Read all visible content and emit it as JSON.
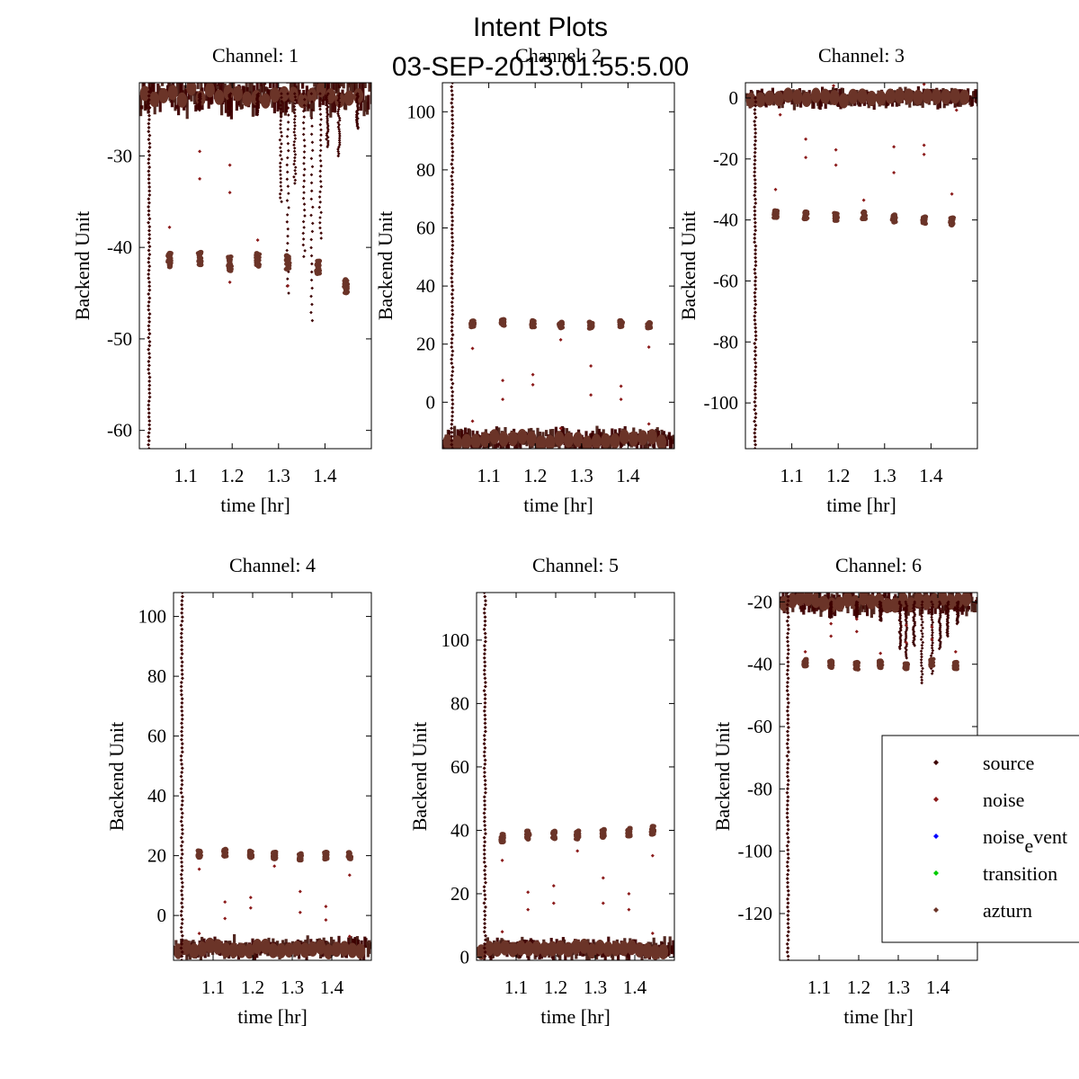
{
  "figure": {
    "title_line1": "Intent Plots",
    "title_line2": "03-SEP-2013.01:55:5.00"
  },
  "colors": {
    "source": "#3d0000",
    "noise": "#8b1a1a",
    "noise_event": "#0000ff",
    "transition": "#00cc00",
    "azturn": "#6b3428",
    "dense": "#4a1e16",
    "axis": "#000000"
  },
  "legend": {
    "entries": [
      {
        "label_main": "source",
        "label_sub": "",
        "label_tail": "",
        "color_key": "source"
      },
      {
        "label_main": "noise",
        "label_sub": "",
        "label_tail": "",
        "color_key": "noise"
      },
      {
        "label_main": "noise",
        "label_sub": "e",
        "label_tail": "vent",
        "color_key": "noise_event"
      },
      {
        "label_main": "transition",
        "label_sub": "",
        "label_tail": "",
        "color_key": "transition"
      },
      {
        "label_main": "azturn",
        "label_sub": "",
        "label_tail": "",
        "color_key": "azturn"
      }
    ]
  },
  "chart_data": [
    {
      "type": "scatter",
      "title": "Channel: 1",
      "xlabel": "time [hr]",
      "ylabel": "Backend Unit",
      "xlim": [
        1.0,
        1.5
      ],
      "ylim": [
        -62,
        -22
      ],
      "xticks": [
        1.1,
        1.2,
        1.3,
        1.4
      ],
      "yticks": [
        -60,
        -50,
        -40,
        -30
      ],
      "baseline": -23.2,
      "baseline_spread": 1.6,
      "drop": {
        "x": 1.021,
        "from": -23,
        "to": -62
      },
      "clusters": {
        "x": [
          1.065,
          1.13,
          1.195,
          1.255,
          1.32,
          1.385,
          1.445
        ],
        "y": [
          -41.4,
          -41.2,
          -41.8,
          -41.4,
          -41.6,
          -42.2,
          -44.2
        ],
        "spread": 0.8
      },
      "outliers": [
        [
          1.065,
          -37.8
        ],
        [
          1.13,
          -29.5
        ],
        [
          1.13,
          -32.5
        ],
        [
          1.195,
          -31
        ],
        [
          1.195,
          -34
        ],
        [
          1.255,
          -39.2
        ],
        [
          1.195,
          -43.8
        ],
        [
          1.32,
          -44.2
        ]
      ],
      "spikes": [
        [
          1.13,
          -25
        ],
        [
          1.195,
          -25.5
        ],
        [
          1.255,
          -25.5
        ],
        [
          1.305,
          -35
        ],
        [
          1.32,
          -45
        ],
        [
          1.335,
          -33
        ],
        [
          1.355,
          -41
        ],
        [
          1.372,
          -48
        ],
        [
          1.39,
          -39
        ],
        [
          1.405,
          -29
        ],
        [
          1.43,
          -30
        ],
        [
          1.47,
          -27
        ]
      ]
    },
    {
      "type": "scatter",
      "title": "Channel: 2",
      "xlabel": "time [hr]",
      "ylabel": "Backend Unit",
      "xlim": [
        1.0,
        1.5
      ],
      "ylim": [
        -16,
        110
      ],
      "xticks": [
        1.1,
        1.2,
        1.3,
        1.4
      ],
      "yticks": [
        0,
        20,
        40,
        60,
        80,
        100
      ],
      "baseline": -13,
      "baseline_spread": 2.5,
      "drop": {
        "x": 1.021,
        "from": 110,
        "to": -16
      },
      "clusters": {
        "x": [
          1.065,
          1.13,
          1.195,
          1.255,
          1.32,
          1.385,
          1.445
        ],
        "y": [
          27,
          27.5,
          27,
          26.5,
          26.5,
          27,
          26.5
        ],
        "spread": 1.2
      },
      "outliers": [
        [
          1.065,
          18.5
        ],
        [
          1.13,
          7.5
        ],
        [
          1.13,
          1
        ],
        [
          1.195,
          9.5
        ],
        [
          1.195,
          6
        ],
        [
          1.255,
          21.5
        ],
        [
          1.32,
          12.5
        ],
        [
          1.32,
          2.5
        ],
        [
          1.385,
          5.5
        ],
        [
          1.385,
          1
        ],
        [
          1.445,
          19
        ],
        [
          1.255,
          -9
        ],
        [
          1.065,
          -6.5
        ],
        [
          1.445,
          -7.5
        ]
      ],
      "spikes": []
    },
    {
      "type": "scatter",
      "title": "Channel: 3",
      "xlabel": "time [hr]",
      "ylabel": "Backend Unit",
      "xlim": [
        1.0,
        1.5
      ],
      "ylim": [
        -115,
        5
      ],
      "xticks": [
        1.1,
        1.2,
        1.3,
        1.4
      ],
      "yticks": [
        -100,
        -80,
        -60,
        -40,
        -20,
        0
      ],
      "baseline": 0,
      "baseline_spread": 1.8,
      "drop": {
        "x": 1.021,
        "from": 0,
        "to": -115
      },
      "clusters": {
        "x": [
          1.065,
          1.13,
          1.195,
          1.255,
          1.32,
          1.385,
          1.445
        ],
        "y": [
          -38,
          -38.5,
          -39,
          -38.5,
          -39.5,
          -40,
          -40.5
        ],
        "spread": 1.3
      },
      "outliers": [
        [
          1.065,
          -30
        ],
        [
          1.13,
          -13.5
        ],
        [
          1.13,
          -19.5
        ],
        [
          1.195,
          -17
        ],
        [
          1.195,
          -22
        ],
        [
          1.255,
          -33.5
        ],
        [
          1.32,
          -16
        ],
        [
          1.32,
          -24.5
        ],
        [
          1.385,
          -15.5
        ],
        [
          1.385,
          -18.5
        ],
        [
          1.445,
          -31.5
        ],
        [
          1.075,
          -5.5
        ],
        [
          1.455,
          -4
        ],
        [
          1.19,
          4
        ],
        [
          1.385,
          4.5
        ]
      ],
      "spikes": []
    },
    {
      "type": "scatter",
      "title": "Channel: 4",
      "xlabel": "time [hr]",
      "ylabel": "Backend Unit",
      "xlim": [
        1.0,
        1.5
      ],
      "ylim": [
        -15,
        108
      ],
      "xticks": [
        1.1,
        1.2,
        1.3,
        1.4
      ],
      "yticks": [
        0,
        20,
        40,
        60,
        80,
        100
      ],
      "baseline": -11,
      "baseline_spread": 2.3,
      "drop": {
        "x": 1.021,
        "from": 108,
        "to": -15
      },
      "clusters": {
        "x": [
          1.065,
          1.13,
          1.195,
          1.255,
          1.32,
          1.385,
          1.445
        ],
        "y": [
          20.5,
          21,
          20.5,
          20,
          19.5,
          20,
          20
        ],
        "spread": 1.3
      },
      "outliers": [
        [
          1.065,
          15.5
        ],
        [
          1.13,
          4.5
        ],
        [
          1.13,
          -1
        ],
        [
          1.195,
          6
        ],
        [
          1.195,
          2.5
        ],
        [
          1.255,
          16.5
        ],
        [
          1.32,
          8
        ],
        [
          1.32,
          1
        ],
        [
          1.385,
          3
        ],
        [
          1.385,
          -1.5
        ],
        [
          1.445,
          13.5
        ],
        [
          1.065,
          -6
        ],
        [
          1.445,
          -7
        ]
      ],
      "spikes": []
    },
    {
      "type": "scatter",
      "title": "Channel: 5",
      "xlabel": "time [hr]",
      "ylabel": "Backend Unit",
      "xlim": [
        1.0,
        1.5
      ],
      "ylim": [
        -1,
        115
      ],
      "xticks": [
        1.1,
        1.2,
        1.3,
        1.4
      ],
      "yticks": [
        0,
        20,
        40,
        60,
        80,
        100
      ],
      "baseline": 2.5,
      "baseline_spread": 2,
      "drop": {
        "x": 1.021,
        "from": 115,
        "to": -1
      },
      "clusters": {
        "x": [
          1.065,
          1.13,
          1.195,
          1.255,
          1.32,
          1.385,
          1.445
        ],
        "y": [
          37.5,
          38.5,
          38.5,
          38.5,
          39,
          39.5,
          40
        ],
        "spread": 1.4
      },
      "outliers": [
        [
          1.065,
          30.5
        ],
        [
          1.13,
          20.5
        ],
        [
          1.13,
          15
        ],
        [
          1.195,
          22.5
        ],
        [
          1.195,
          17
        ],
        [
          1.255,
          33.5
        ],
        [
          1.32,
          25
        ],
        [
          1.32,
          17
        ],
        [
          1.385,
          20
        ],
        [
          1.385,
          15
        ],
        [
          1.445,
          32
        ],
        [
          1.065,
          8
        ],
        [
          1.445,
          7.5
        ]
      ],
      "spikes": []
    },
    {
      "type": "scatter",
      "title": "Channel: 6",
      "xlabel": "time [hr]",
      "ylabel": "Backend Unit",
      "xlim": [
        1.0,
        1.5
      ],
      "ylim": [
        -135,
        -17
      ],
      "xticks": [
        1.1,
        1.2,
        1.3,
        1.4
      ],
      "yticks": [
        -120,
        -100,
        -80,
        -60,
        -40,
        -20
      ],
      "baseline": -20,
      "baseline_spread": 2.6,
      "drop": {
        "x": 1.021,
        "from": -17,
        "to": -135
      },
      "clusters": {
        "x": [
          1.065,
          1.13,
          1.195,
          1.255,
          1.32,
          1.385,
          1.445
        ],
        "y": [
          -39.5,
          -40,
          -40.5,
          -40,
          -40.5,
          -39.5,
          -40.5
        ],
        "spread": 1.2
      },
      "outliers": [
        [
          1.065,
          -36
        ],
        [
          1.13,
          -27
        ],
        [
          1.13,
          -31
        ],
        [
          1.195,
          -25.5
        ],
        [
          1.195,
          -29.5
        ],
        [
          1.255,
          -36.5
        ],
        [
          1.32,
          -27.5
        ],
        [
          1.32,
          -33
        ],
        [
          1.385,
          -28
        ],
        [
          1.385,
          -32
        ],
        [
          1.445,
          -36
        ]
      ],
      "spikes": [
        [
          1.13,
          -25
        ],
        [
          1.195,
          -25
        ],
        [
          1.255,
          -26
        ],
        [
          1.305,
          -35
        ],
        [
          1.32,
          -38
        ],
        [
          1.34,
          -34
        ],
        [
          1.36,
          -46
        ],
        [
          1.385,
          -43
        ],
        [
          1.405,
          -35
        ],
        [
          1.425,
          -31
        ],
        [
          1.45,
          -27
        ]
      ]
    }
  ]
}
